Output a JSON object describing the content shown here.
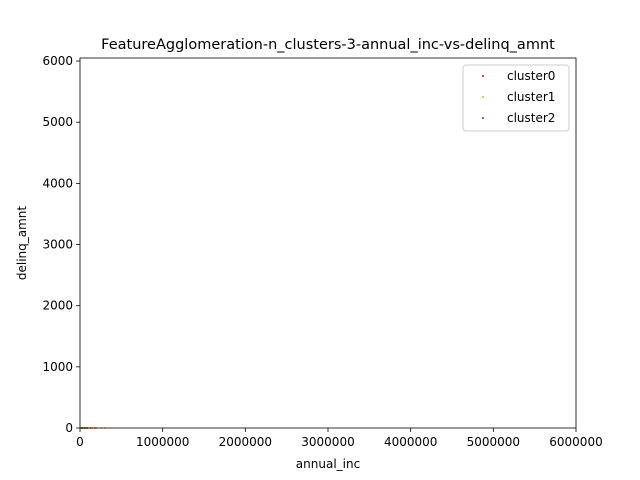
{
  "chart_data": {
    "type": "scatter",
    "title": "FeatureAgglomeration-n_clusters-3-annual_inc-vs-delinq_amnt",
    "xlabel": "annual_inc",
    "ylabel": "delinq_amnt",
    "xlim": [
      0,
      6000000
    ],
    "ylim": [
      0,
      6050
    ],
    "xticks": [
      0,
      1000000,
      2000000,
      3000000,
      4000000,
      5000000,
      6000000
    ],
    "xtick_labels": [
      "0",
      "1000000",
      "2000000",
      "3000000",
      "4000000",
      "5000000",
      "6000000"
    ],
    "yticks": [
      0,
      1000,
      2000,
      3000,
      4000,
      5000,
      6000
    ],
    "ytick_labels": [
      "0",
      "1000",
      "2000",
      "3000",
      "4000",
      "5000",
      "6000"
    ],
    "grid": false,
    "legend_position": "top-right",
    "series": [
      {
        "name": "cluster0",
        "color": "#ff0000",
        "points": [
          [
            15000,
            0
          ],
          [
            35000,
            0
          ],
          [
            60000,
            0
          ],
          [
            90000,
            0
          ],
          [
            130000,
            0
          ],
          [
            180000,
            0
          ]
        ]
      },
      {
        "name": "cluster1",
        "color": "#ffa500",
        "points": [
          [
            20000,
            0
          ],
          [
            45000,
            0
          ],
          [
            70000,
            0
          ],
          [
            110000,
            0
          ],
          [
            150000,
            0
          ],
          [
            200000,
            0
          ],
          [
            260000,
            0
          ],
          [
            300000,
            0
          ]
        ]
      },
      {
        "name": "cluster2",
        "color": "#008000",
        "points": [
          [
            25000,
            0
          ],
          [
            55000,
            0
          ],
          [
            85000,
            0
          ]
        ]
      }
    ]
  }
}
